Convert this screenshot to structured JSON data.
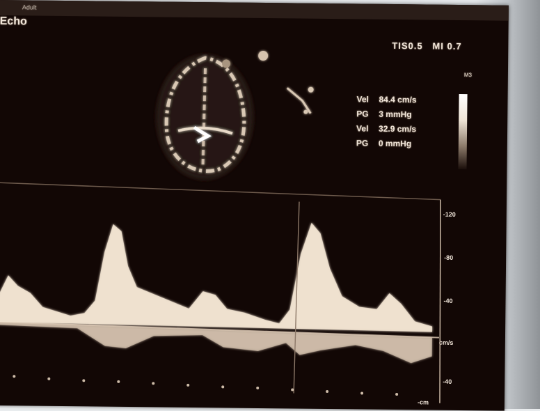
{
  "app": {
    "name": "Echo"
  },
  "header": {
    "left_text": "Adult",
    "mid_text": "",
    "center_text": "",
    "date_text": "",
    "tis": "TIS0.5",
    "mi": "MI 0.7"
  },
  "measurements": [
    {
      "label": "Vel",
      "value": "84.4 cm/s"
    },
    {
      "label": "PG",
      "value": "3 mmHg"
    },
    {
      "label": "Vel",
      "value": "32.9 cm/s"
    },
    {
      "label": "PG",
      "value": "0 mmHg"
    }
  ],
  "scale": {
    "unit": "M3",
    "ticks": [
      "-120",
      "-80",
      "-40",
      "cm/s",
      "-40",
      "-cm"
    ]
  },
  "colors": {
    "background": "#120705",
    "signal": "#f6ead9"
  }
}
